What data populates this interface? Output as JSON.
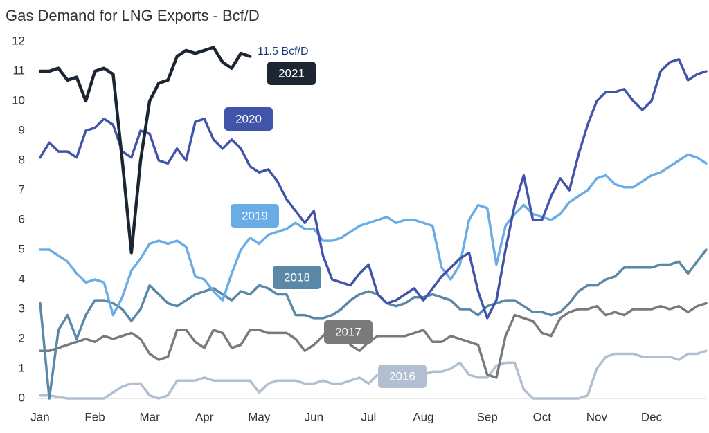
{
  "chart_data": {
    "type": "line",
    "title": "Gas Demand for LNG Exports - Bcf/D",
    "annotation": "11.5 Bcf/D",
    "categories": [
      "Jan",
      null,
      null,
      null,
      null,
      null,
      "Feb",
      null,
      null,
      null,
      null,
      null,
      "Mar",
      null,
      null,
      null,
      null,
      null,
      "Apr",
      null,
      null,
      null,
      null,
      null,
      "May",
      null,
      null,
      null,
      null,
      null,
      "Jun",
      null,
      null,
      null,
      null,
      null,
      "Jul",
      null,
      null,
      null,
      null,
      null,
      "Aug",
      null,
      null,
      null,
      null,
      null,
      null,
      "Sep",
      null,
      null,
      null,
      null,
      null,
      "Oct",
      null,
      null,
      null,
      null,
      null,
      "Nov",
      null,
      null,
      null,
      null,
      null,
      "Dec",
      null,
      null,
      null,
      null,
      null,
      null
    ],
    "ylim": [
      0,
      12
    ],
    "yticks": [
      0,
      1,
      2,
      3,
      4,
      5,
      6,
      7,
      8,
      9,
      10,
      11,
      12
    ],
    "grid": false,
    "series": [
      {
        "name": "2016",
        "color": "#b2bfd0",
        "values": [
          0.1,
          0.1,
          0.05,
          0,
          0,
          0,
          0,
          0,
          0.2,
          0.4,
          0.5,
          0.5,
          0.1,
          0,
          0.1,
          0.6,
          0.6,
          0.6,
          0.7,
          0.6,
          0.6,
          0.6,
          0.6,
          0.6,
          0.2,
          0.5,
          0.6,
          0.6,
          0.6,
          0.5,
          0.5,
          0.6,
          0.5,
          0.5,
          0.6,
          0.7,
          0.5,
          0.8,
          0.8,
          0.8,
          0.8,
          0.8,
          0.8,
          0.9,
          0.9,
          1.0,
          1.2,
          0.8,
          0.7,
          0.7,
          1.1,
          1.2,
          1.2,
          0.3,
          0,
          0,
          0,
          0,
          0,
          0,
          0.1,
          1.0,
          1.4,
          1.5,
          1.5,
          1.5,
          1.4,
          1.4,
          1.4,
          1.4,
          1.3,
          1.5,
          1.5,
          1.6
        ]
      },
      {
        "name": "2017",
        "color": "#7a7a7a",
        "values": [
          1.6,
          1.6,
          1.7,
          1.8,
          1.9,
          2.0,
          1.9,
          2.1,
          2.0,
          2.1,
          2.2,
          2.0,
          1.5,
          1.3,
          1.4,
          2.3,
          2.3,
          1.9,
          1.7,
          2.3,
          2.2,
          1.7,
          1.8,
          2.3,
          2.3,
          2.2,
          2.2,
          2.2,
          2.0,
          1.6,
          1.8,
          2.1,
          2.4,
          2.3,
          1.8,
          1.6,
          1.9,
          2.1,
          2.1,
          2.1,
          2.1,
          2.2,
          2.3,
          1.9,
          1.9,
          2.1,
          2.0,
          1.9,
          1.8,
          0.8,
          0.7,
          2.1,
          2.8,
          2.7,
          2.6,
          2.2,
          2.1,
          2.7,
          2.9,
          3.0,
          3.0,
          3.1,
          2.8,
          2.9,
          2.8,
          3.0,
          3.0,
          3.0,
          3.1,
          3.0,
          3.1,
          2.9,
          3.1,
          3.2
        ]
      },
      {
        "name": "2018",
        "color": "#5a88a6",
        "values": [
          3.2,
          0.0,
          2.3,
          2.8,
          2.0,
          2.8,
          3.3,
          3.3,
          3.2,
          3.0,
          2.6,
          3.0,
          3.8,
          3.5,
          3.2,
          3.1,
          3.3,
          3.5,
          3.6,
          3.7,
          3.5,
          3.3,
          3.6,
          3.5,
          3.8,
          3.7,
          3.5,
          3.5,
          2.8,
          2.8,
          2.7,
          2.7,
          2.8,
          3.0,
          3.3,
          3.5,
          3.6,
          3.5,
          3.2,
          3.1,
          3.2,
          3.4,
          3.4,
          3.5,
          3.4,
          3.3,
          3.0,
          3.0,
          2.8,
          3.1,
          3.2,
          3.3,
          3.3,
          3.1,
          2.9,
          2.9,
          2.8,
          2.9,
          3.2,
          3.6,
          3.8,
          3.8,
          4.0,
          4.1,
          4.4,
          4.4,
          4.4,
          4.4,
          4.5,
          4.5,
          4.6,
          4.2,
          4.6,
          5.0
        ]
      },
      {
        "name": "2019",
        "color": "#6aade6",
        "values": [
          5.0,
          5.0,
          4.8,
          4.6,
          4.2,
          3.9,
          4.0,
          3.9,
          2.8,
          3.4,
          4.3,
          4.7,
          5.2,
          5.3,
          5.2,
          5.3,
          5.1,
          4.1,
          4.0,
          3.6,
          3.3,
          4.2,
          5.0,
          5.4,
          5.2,
          5.5,
          5.6,
          5.7,
          5.9,
          5.7,
          5.7,
          5.3,
          5.3,
          5.4,
          5.6,
          5.8,
          5.9,
          6.0,
          6.1,
          5.9,
          6.0,
          6.0,
          5.9,
          5.8,
          4.4,
          4.0,
          4.5,
          6.0,
          6.5,
          6.4,
          4.5,
          5.8,
          6.2,
          6.5,
          6.2,
          6.1,
          6.0,
          6.2,
          6.6,
          6.8,
          7.0,
          7.4,
          7.5,
          7.2,
          7.1,
          7.1,
          7.3,
          7.5,
          7.6,
          7.8,
          8.0,
          8.2,
          8.1,
          7.9
        ]
      },
      {
        "name": "2020",
        "color": "#4154aa",
        "values": [
          8.1,
          8.6,
          8.3,
          8.3,
          8.1,
          9.0,
          9.1,
          9.4,
          9.2,
          8.3,
          8.1,
          9.0,
          8.9,
          8.0,
          7.9,
          8.4,
          8.0,
          9.3,
          9.4,
          8.7,
          8.4,
          8.7,
          8.4,
          7.8,
          7.6,
          7.7,
          7.3,
          6.7,
          6.3,
          5.9,
          6.3,
          4.8,
          4.0,
          3.9,
          3.8,
          4.2,
          4.5,
          3.5,
          3.2,
          3.3,
          3.5,
          3.7,
          3.3,
          3.7,
          4.1,
          4.4,
          4.7,
          4.9,
          3.6,
          2.7,
          3.3,
          5.0,
          6.5,
          7.5,
          6.0,
          6.0,
          6.8,
          7.4,
          7.0,
          8.2,
          9.2,
          10.0,
          10.3,
          10.3,
          10.4,
          10.0,
          9.7,
          10.0,
          11.0,
          11.3,
          11.4,
          10.7,
          10.9,
          11.0
        ]
      },
      {
        "name": "2021",
        "color": "#1c2633",
        "values": [
          11.0,
          11.0,
          11.1,
          10.7,
          10.8,
          10.0,
          11.0,
          11.1,
          10.9,
          8.0,
          4.9,
          8.0,
          10.0,
          10.6,
          10.7,
          11.5,
          11.7,
          11.6,
          11.7,
          11.8,
          11.3,
          11.1,
          11.6,
          11.5,
          null,
          null,
          null,
          null,
          null,
          null,
          null,
          null,
          null,
          null,
          null,
          null,
          null,
          null,
          null,
          null,
          null,
          null,
          null,
          null,
          null,
          null,
          null,
          null,
          null,
          null,
          null,
          null,
          null,
          null,
          null,
          null,
          null,
          null,
          null,
          null,
          null,
          null,
          null,
          null,
          null,
          null,
          null,
          null,
          null,
          null,
          null,
          null,
          null,
          null
        ]
      }
    ]
  }
}
